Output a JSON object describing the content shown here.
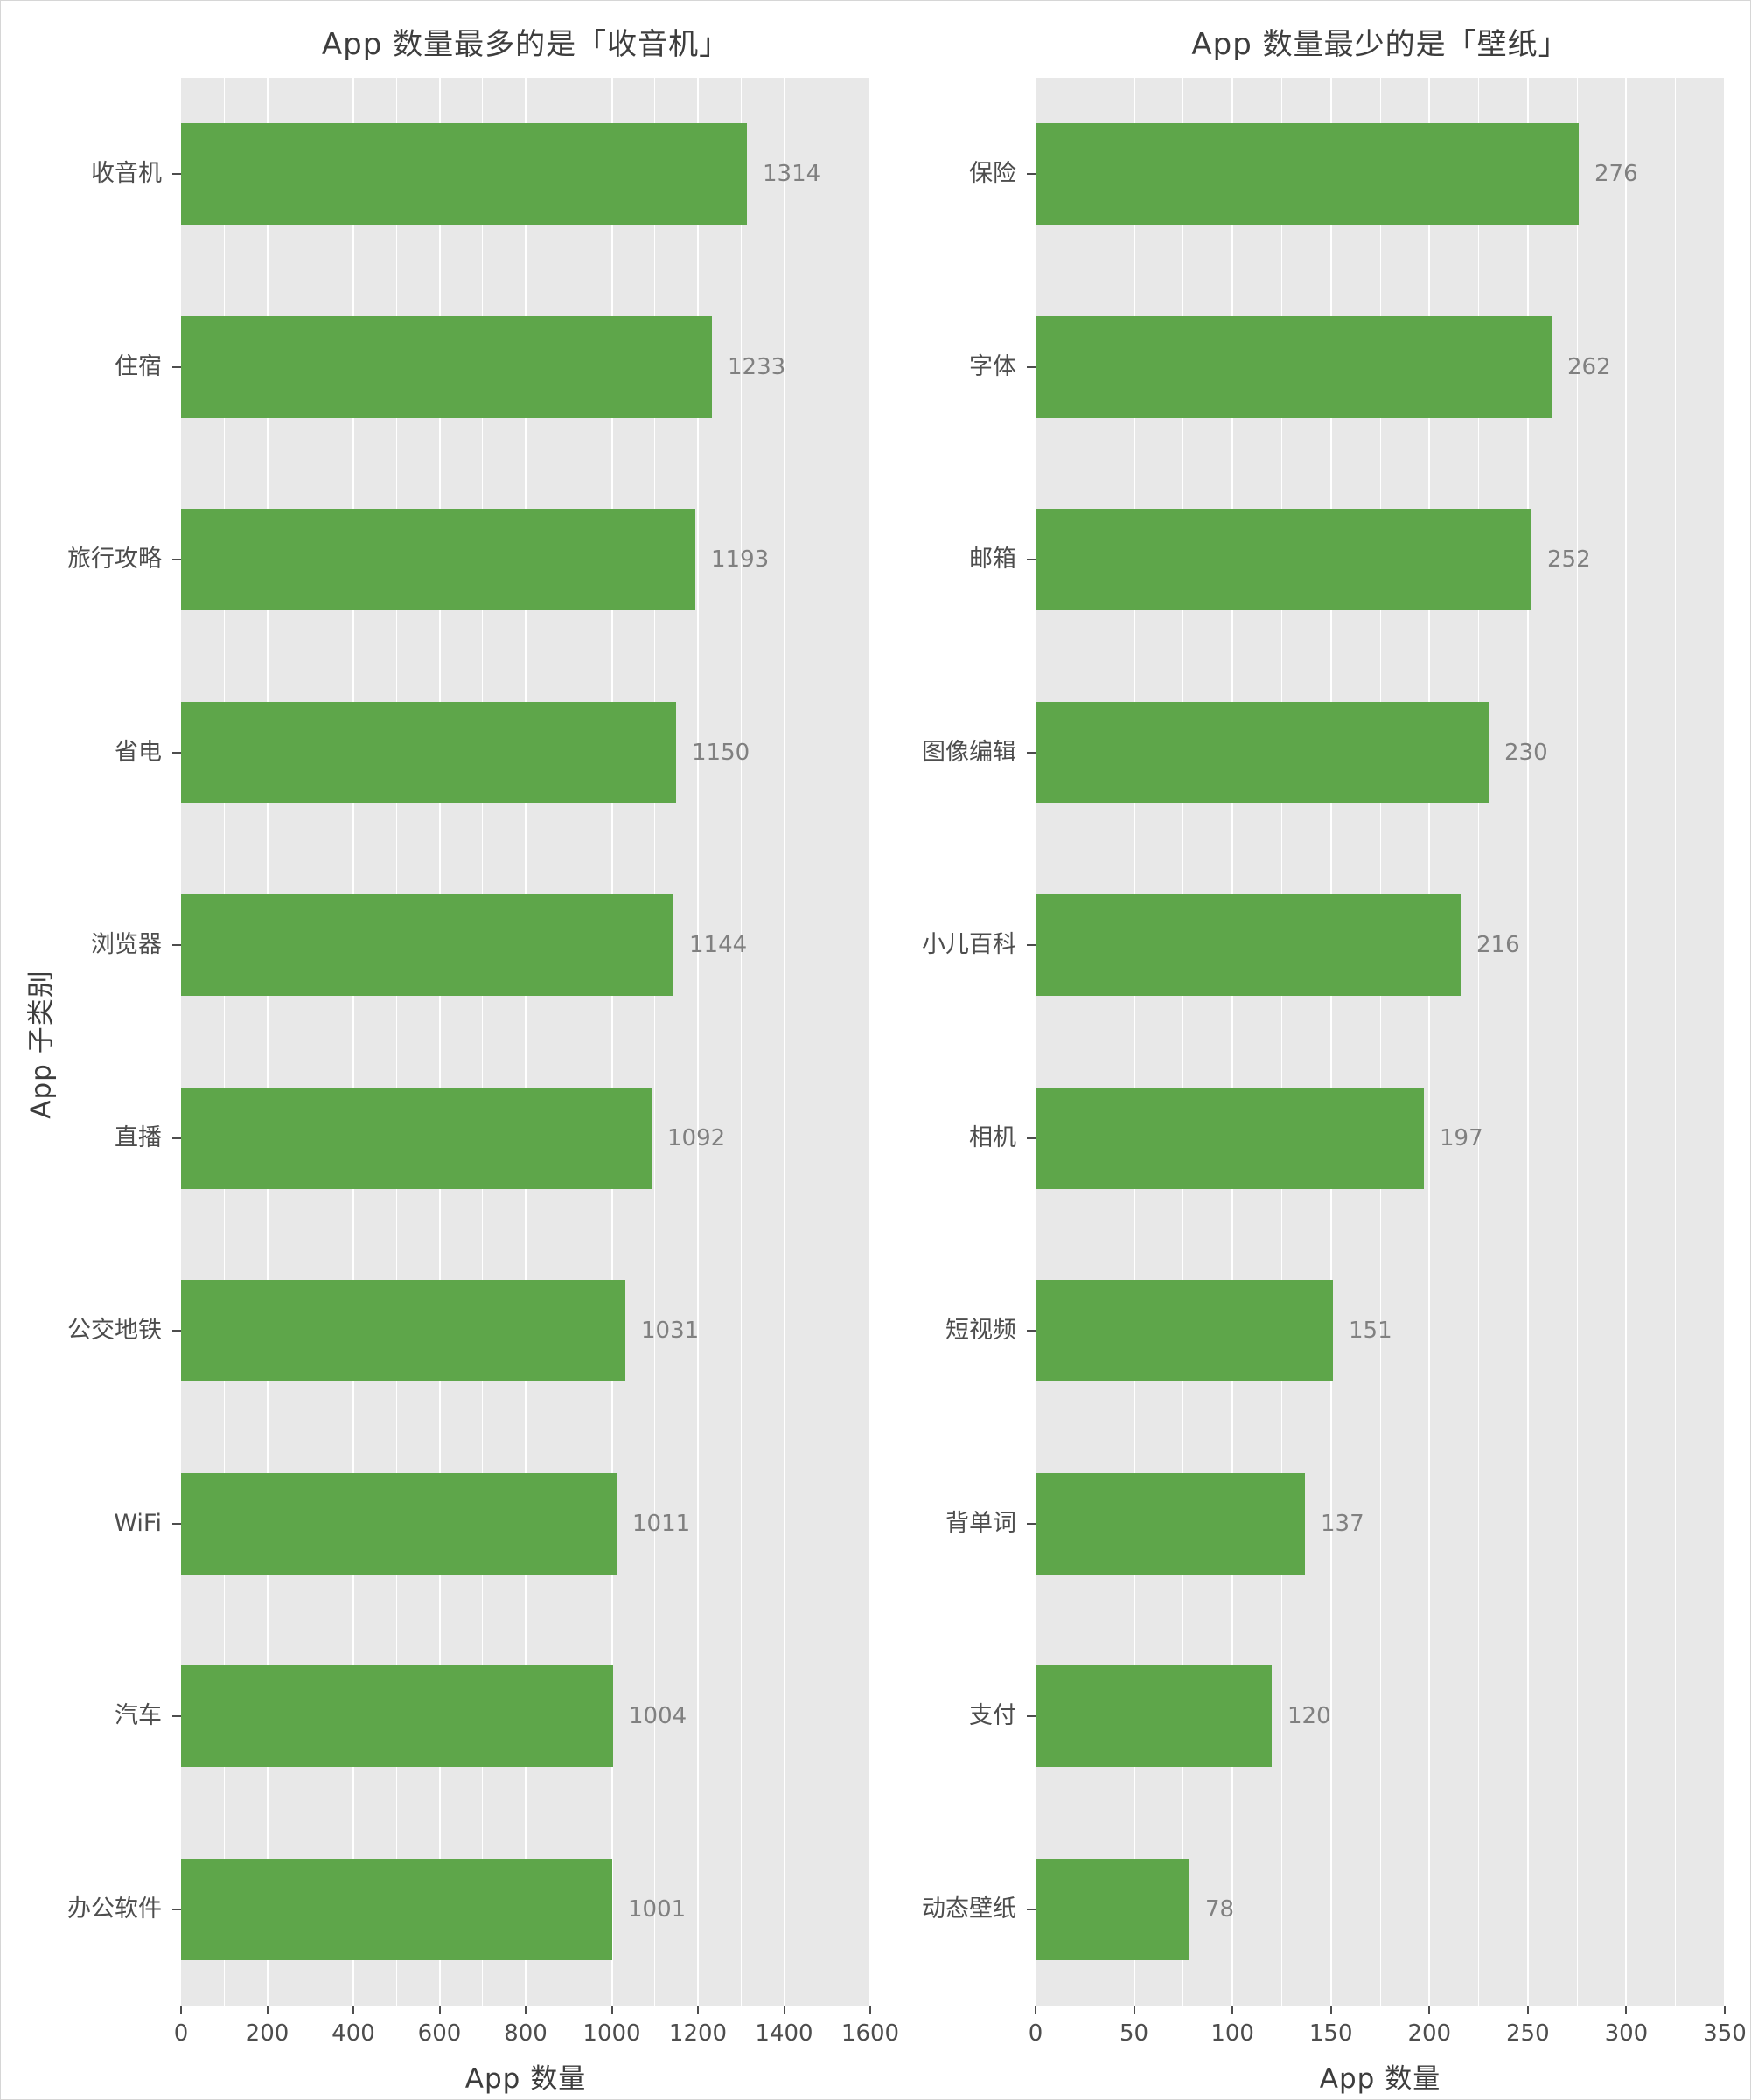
{
  "ylabel": "App 子类别",
  "colors": {
    "bar": "#5ea64a",
    "plot_bg": "#e8e8e8",
    "grid": "#ffffff",
    "value_label": "#808080",
    "axis_text": "#4d4d4d",
    "title_text": "#3d3d3d"
  },
  "chart_data": [
    {
      "type": "bar",
      "orientation": "horizontal",
      "title": "App 数量最多的是「收音机」",
      "xlabel": "App 数量",
      "categories": [
        "收音机",
        "住宿",
        "旅行攻略",
        "省电",
        "浏览器",
        "直播",
        "公交地铁",
        "WiFi",
        "汽车",
        "办公软件"
      ],
      "values": [
        1314,
        1233,
        1193,
        1150,
        1144,
        1092,
        1031,
        1011,
        1004,
        1001
      ],
      "xlim": [
        0,
        1600
      ],
      "xticks": [
        0,
        200,
        400,
        600,
        800,
        1000,
        1200,
        1400,
        1600
      ],
      "grid": "major-and-minor-vertical",
      "bar_labels": true
    },
    {
      "type": "bar",
      "orientation": "horizontal",
      "title": "App 数量最少的是「壁纸」",
      "xlabel": "App 数量",
      "categories": [
        "保险",
        "字体",
        "邮箱",
        "图像编辑",
        "小儿百科",
        "相机",
        "短视频",
        "背单词",
        "支付",
        "动态壁纸"
      ],
      "values": [
        276,
        262,
        252,
        230,
        216,
        197,
        151,
        137,
        120,
        78
      ],
      "xlim": [
        0,
        350
      ],
      "xticks": [
        0,
        50,
        100,
        150,
        200,
        250,
        300,
        350
      ],
      "grid": "major-and-minor-vertical",
      "bar_labels": true
    }
  ]
}
